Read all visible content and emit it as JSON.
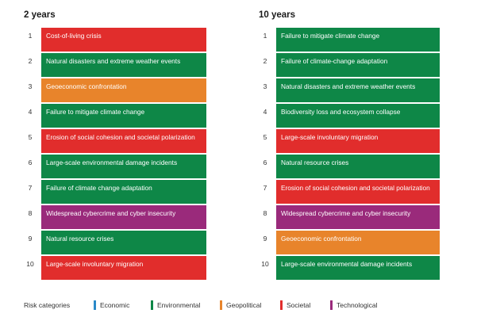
{
  "colors": {
    "Economic": "#2a89c8",
    "Environmental": "#0e8747",
    "Geopolitical": "#e8842b",
    "Societal": "#e12d2c",
    "Technological": "#9a2a7b"
  },
  "columns": [
    {
      "title": "2 years",
      "items": [
        {
          "rank": "1",
          "label": "Cost-of-living crisis",
          "category": "Societal"
        },
        {
          "rank": "2",
          "label": "Natural disasters and extreme weather events",
          "category": "Environmental"
        },
        {
          "rank": "3",
          "label": "Geoeconomic confrontation",
          "category": "Geopolitical"
        },
        {
          "rank": "4",
          "label": "Failure to mitigate climate change",
          "category": "Environmental"
        },
        {
          "rank": "5",
          "label": "Erosion of social cohesion and societal polarization",
          "category": "Societal"
        },
        {
          "rank": "6",
          "label": "Large-scale environmental damage incidents",
          "category": "Environmental"
        },
        {
          "rank": "7",
          "label": "Failure of climate change adaptation",
          "category": "Environmental"
        },
        {
          "rank": "8",
          "label": "Widespread cybercrime and cyber insecurity",
          "category": "Technological"
        },
        {
          "rank": "9",
          "label": "Natural resource crises",
          "category": "Environmental"
        },
        {
          "rank": "10",
          "label": "Large-scale involuntary migration",
          "category": "Societal"
        }
      ]
    },
    {
      "title": "10 years",
      "items": [
        {
          "rank": "1",
          "label": "Failure to mitigate climate change",
          "category": "Environmental"
        },
        {
          "rank": "2",
          "label": "Failure of climate-change adaptation",
          "category": "Environmental"
        },
        {
          "rank": "3",
          "label": "Natural disasters and extreme weather events",
          "category": "Environmental"
        },
        {
          "rank": "4",
          "label": "Biodiversity loss and ecosystem collapse",
          "category": "Environmental"
        },
        {
          "rank": "5",
          "label": "Large-scale involuntary migration",
          "category": "Societal"
        },
        {
          "rank": "6",
          "label": "Natural resource crises",
          "category": "Environmental"
        },
        {
          "rank": "7",
          "label": "Erosion of social cohesion and societal polarization",
          "category": "Societal"
        },
        {
          "rank": "8",
          "label": "Widespread cybercrime and cyber insecurity",
          "category": "Technological"
        },
        {
          "rank": "9",
          "label": "Geoeconomic confrontation",
          "category": "Geopolitical"
        },
        {
          "rank": "10",
          "label": "Large-scale environmental damage incidents",
          "category": "Environmental"
        }
      ]
    }
  ],
  "legend": {
    "title": "Risk categories",
    "items": [
      {
        "label": "Economic",
        "category": "Economic"
      },
      {
        "label": "Environmental",
        "category": "Environmental"
      },
      {
        "label": "Geopolitical",
        "category": "Geopolitical"
      },
      {
        "label": "Societal",
        "category": "Societal"
      },
      {
        "label": "Technological",
        "category": "Technological"
      }
    ]
  }
}
